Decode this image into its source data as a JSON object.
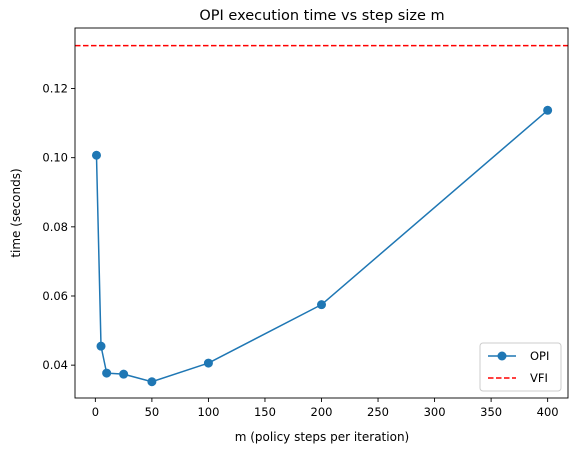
{
  "chart_data": {
    "type": "line",
    "title": "OPI execution time vs step size m",
    "xlabel": "m (policy steps per iteration)",
    "ylabel": "time (seconds)",
    "xlim": [
      -18,
      418
    ],
    "ylim": [
      0.0305,
      0.1375
    ],
    "xticks": [
      0,
      50,
      100,
      150,
      200,
      250,
      300,
      350,
      400
    ],
    "xtick_labels": [
      "0",
      "50",
      "100",
      "150",
      "200",
      "250",
      "300",
      "350",
      "400"
    ],
    "yticks": [
      0.04,
      0.06,
      0.08,
      0.1,
      0.12
    ],
    "ytick_labels": [
      "0.04",
      "0.06",
      "0.08",
      "0.10",
      "0.12"
    ],
    "grid": false,
    "legend_position": "bottom-right",
    "series": [
      {
        "name": "OPI",
        "color": "#1f77b4",
        "marker": "circle",
        "x": [
          1,
          5,
          10,
          25,
          50,
          100,
          200,
          400
        ],
        "y": [
          0.1007,
          0.0455,
          0.0377,
          0.0374,
          0.0352,
          0.0406,
          0.0575,
          0.1137
        ]
      }
    ],
    "hlines": [
      {
        "name": "VFI",
        "color": "#ff0000",
        "style": "dashed",
        "y": 0.1324
      }
    ]
  }
}
